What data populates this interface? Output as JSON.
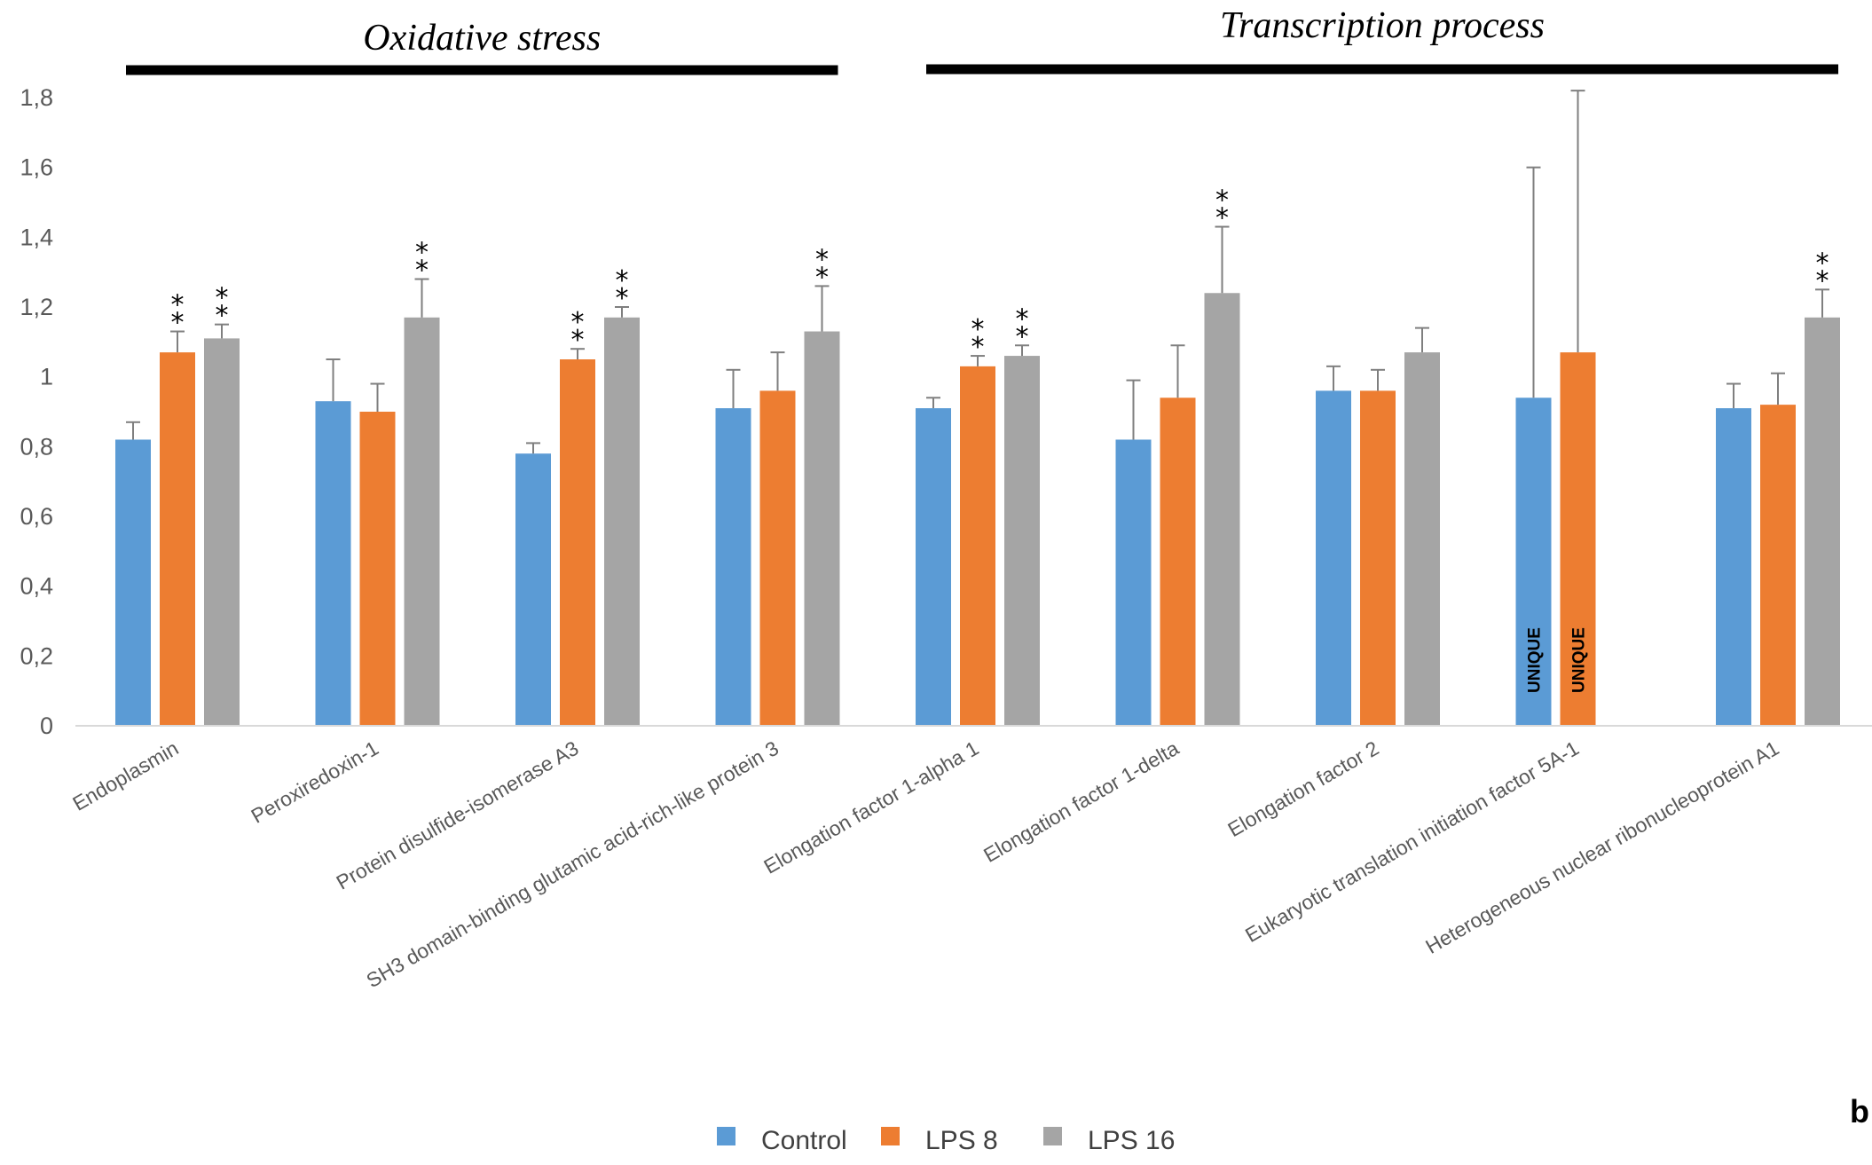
{
  "chart_data": {
    "type": "bar",
    "panel_label": "b",
    "groups": [
      {
        "label": "Oxidative stress",
        "from": 0,
        "to": 3
      },
      {
        "label": "Transcription process",
        "from": 4,
        "to": 8
      }
    ],
    "categories": [
      "Endoplasmin",
      "Peroxiredoxin-1",
      "Protein disulfide-isomerase A3",
      "SH3 domain-binding glutamic acid-rich-like protein 3",
      "Elongation factor 1-alpha 1",
      "Elongation factor 1-delta",
      "Elongation factor 2",
      "Eukaryotic translation initiation factor 5A-1",
      "Heterogeneous nuclear ribonucleoprotein A1"
    ],
    "series": [
      {
        "name": "Control",
        "color": "#5B9BD5",
        "values": [
          0.82,
          0.93,
          0.78,
          0.91,
          0.91,
          0.82,
          0.96,
          0.94,
          0.91
        ],
        "errors": [
          0.05,
          0.12,
          0.03,
          0.11,
          0.03,
          0.17,
          0.07,
          0.66,
          0.07
        ],
        "markers": [
          "",
          "",
          "",
          "",
          "",
          "",
          "",
          "",
          ""
        ]
      },
      {
        "name": "LPS 8",
        "color": "#ED7D31",
        "values": [
          1.07,
          0.9,
          1.05,
          0.96,
          1.03,
          0.94,
          0.96,
          1.07,
          0.92
        ],
        "errors": [
          0.06,
          0.08,
          0.03,
          0.11,
          0.03,
          0.15,
          0.06,
          0.75,
          0.09
        ],
        "markers": [
          "**",
          "",
          "**",
          "",
          "**",
          "",
          "",
          "",
          ""
        ]
      },
      {
        "name": "LPS 16",
        "color": "#A5A5A5",
        "values": [
          1.11,
          1.17,
          1.17,
          1.13,
          1.06,
          1.24,
          1.07,
          null,
          1.17
        ],
        "errors": [
          0.04,
          0.11,
          0.03,
          0.13,
          0.03,
          0.19,
          0.07,
          null,
          0.08
        ],
        "markers": [
          "**",
          "**",
          "**",
          "**",
          "**",
          "**",
          "",
          "",
          "**"
        ]
      }
    ],
    "bar_annotations": [
      {
        "category_index": 7,
        "series_index": 0,
        "text": "UNIQUE"
      },
      {
        "category_index": 7,
        "series_index": 1,
        "text": "UNIQUE"
      }
    ],
    "y_ticks": [
      "0",
      "0,2",
      "0,4",
      "0,6",
      "0,8",
      "1",
      "1,2",
      "1,4",
      "1,6",
      "1,8"
    ],
    "ylim": [
      0,
      1.8
    ],
    "grid": false,
    "legend_position": "bottom-center",
    "title": "",
    "xlabel": "",
    "ylabel": ""
  }
}
